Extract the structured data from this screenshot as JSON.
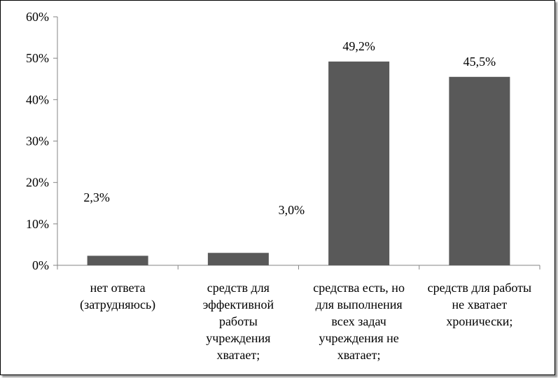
{
  "chart_data": {
    "type": "bar",
    "categories": [
      [
        "нет ответа",
        "(затрудняюсь)"
      ],
      [
        "средств для",
        "эффективной",
        "работы",
        "учреждения",
        "хватает;"
      ],
      [
        "средства есть, но",
        "для выполнения",
        "всех задач",
        "учреждения не",
        "хватает;"
      ],
      [
        "средств для работы",
        "не хватает",
        "хронически;"
      ]
    ],
    "values": [
      2.3,
      3.0,
      49.2,
      45.5
    ],
    "data_labels": [
      "2,3%",
      "3,0%",
      "49,2%",
      "45,5%"
    ],
    "ylim": [
      0,
      60
    ],
    "yticks": [
      0,
      10,
      20,
      30,
      40,
      50,
      60
    ],
    "ytick_labels": [
      "0%",
      "10%",
      "20%",
      "30%",
      "40%",
      "50%",
      "60%"
    ],
    "bar_color": "#595959",
    "grid": false,
    "legend": "none"
  }
}
